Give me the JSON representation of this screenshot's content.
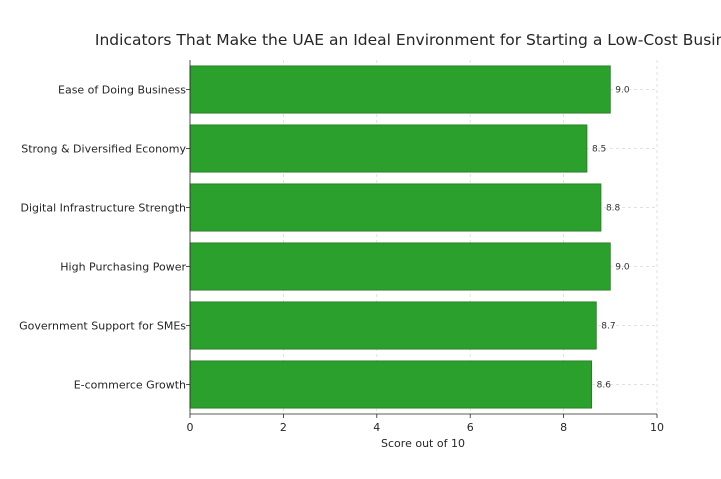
{
  "chart_data": {
    "type": "bar",
    "orientation": "horizontal",
    "title": "Indicators That Make the UAE an Ideal Environment for Starting a Low-Cost Business",
    "xlabel": "Score out of 10",
    "ylabel": "",
    "categories": [
      "Ease of Doing Business",
      "Strong & Diversified Economy",
      "Digital Infrastructure Strength",
      "High Purchasing Power",
      "Government Support for SMEs",
      "E-commerce Growth"
    ],
    "values": [
      9.0,
      8.5,
      8.8,
      9.0,
      8.7,
      8.6
    ],
    "value_labels": [
      "9.0",
      "8.5",
      "8.8",
      "9.0",
      "8.7",
      "8.6"
    ],
    "xlim": [
      0,
      10
    ],
    "xticks": [
      "0",
      "2",
      "4",
      "6",
      "8",
      "10"
    ],
    "grid": "x-dashed",
    "bar_color": "#2ca02c",
    "bar_edge_color": "#1f7a1f"
  }
}
